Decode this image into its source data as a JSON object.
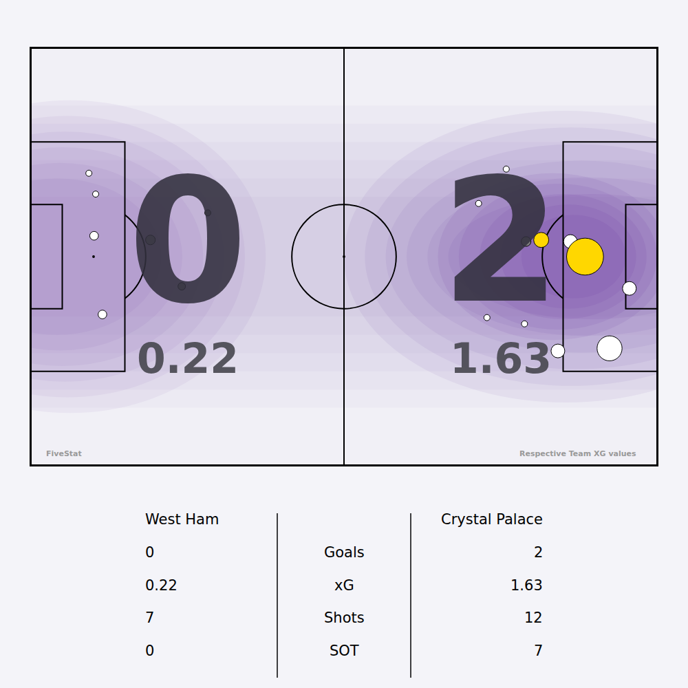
{
  "chart_data": {
    "type": "scatter",
    "tick_labels": false,
    "grid": false,
    "xlim": [
      0,
      120
    ],
    "ylim": [
      80,
      0
    ],
    "series": [
      {
        "name": "West Ham",
        "goals": 0,
        "xg": 0.22,
        "shots": 7,
        "sot": 0,
        "x": [
          11.1,
          12.4,
          12.1,
          22.9,
          33.9,
          28.9,
          13.7
        ],
        "y": [
          24.0,
          28.0,
          36.0,
          36.8,
          31.6,
          45.7,
          51.1
        ],
        "shot_xg": [
          0.02,
          0.02,
          0.04,
          0.05,
          0.02,
          0.03,
          0.04
        ],
        "colors": [
          "#ffffff",
          "#ffffff",
          "#ffffff",
          "#808080",
          "#707070",
          "#808080",
          "#ffffff"
        ]
      },
      {
        "name": "Crystal Palace",
        "goals": 2,
        "xg": 1.63,
        "shots": 12,
        "sot": 7,
        "x": [
          91.1,
          85.8,
          94.9,
          97.8,
          103.4,
          105.9,
          106.2,
          114.7,
          87.4,
          94.6,
          101.0,
          110.9
        ],
        "y": [
          23.2,
          29.8,
          37.1,
          36.8,
          37.1,
          37.6,
          40.0,
          46.1,
          51.7,
          52.9,
          58.1,
          57.6
        ],
        "shot_xg": [
          0.02,
          0.02,
          0.05,
          0.12,
          0.1,
          0.03,
          0.72,
          0.1,
          0.02,
          0.02,
          0.1,
          0.33
        ],
        "colors": [
          "#ffffff",
          "#ffffff",
          "#808080",
          "#ffd700",
          "#ffffff",
          "#ffffff",
          "#ffd700",
          "#ffffff",
          "#ffffff",
          "#ffffff",
          "#ffffff",
          "#ffffff"
        ]
      }
    ],
    "stats_labels": [
      "Goals",
      "xG",
      "Shots",
      "SOT"
    ],
    "source": "FiveStat",
    "note": "Respective Team XG values"
  }
}
